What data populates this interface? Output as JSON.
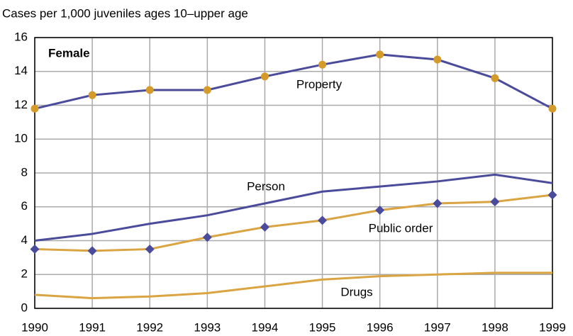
{
  "chart_data": {
    "type": "line",
    "title": "Cases per 1,000 juveniles ages 10–upper age",
    "annotation": "Female",
    "x": [
      1990,
      1991,
      1992,
      1993,
      1994,
      1995,
      1996,
      1997,
      1998,
      1999
    ],
    "series": [
      {
        "name": "Property",
        "color": "#4b4b9b",
        "marker": "circle",
        "marker_color": "#d49a2a",
        "values": [
          11.8,
          12.6,
          12.9,
          12.9,
          13.7,
          14.4,
          15.0,
          14.7,
          13.6,
          11.8
        ]
      },
      {
        "name": "Person",
        "color": "#4b4b9b",
        "values": [
          4.0,
          4.4,
          5.0,
          5.5,
          6.2,
          6.9,
          7.2,
          7.5,
          7.9,
          7.4
        ]
      },
      {
        "name": "Public order",
        "color": "#d9a441",
        "marker": "diamond",
        "marker_color": "#4b4b9b",
        "values": [
          3.5,
          3.4,
          3.5,
          4.2,
          4.8,
          5.2,
          5.8,
          6.2,
          6.3,
          6.7
        ]
      },
      {
        "name": "Drugs",
        "color": "#d9a441",
        "values": [
          0.8,
          0.6,
          0.7,
          0.9,
          1.3,
          1.7,
          1.9,
          2.0,
          2.1,
          2.1
        ]
      }
    ],
    "xlim": [
      1990,
      1999
    ],
    "xticks": [
      1990,
      1991,
      1992,
      1993,
      1994,
      1995,
      1996,
      1997,
      1998,
      1999
    ],
    "ylim": [
      0,
      16
    ],
    "yticks": [
      0,
      2,
      4,
      6,
      8,
      10,
      12,
      14,
      16
    ],
    "grid": true
  }
}
